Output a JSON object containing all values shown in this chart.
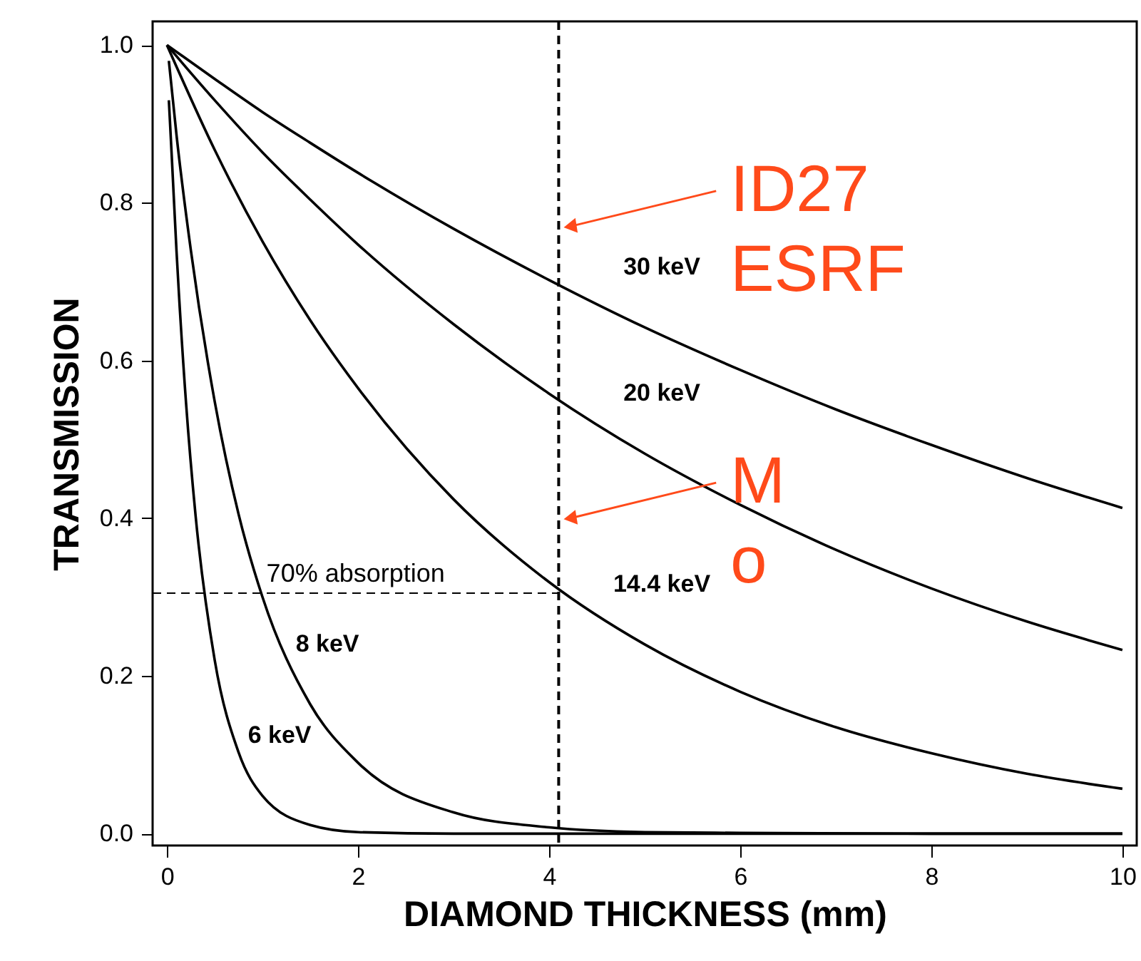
{
  "chart_data": {
    "type": "line",
    "xlabel": "DIAMOND THICKNESS (mm)",
    "ylabel": "TRANSMISSION",
    "xlim": [
      -0.15,
      10.15
    ],
    "ylim": [
      -0.015,
      1.03
    ],
    "xticks": [
      0,
      2,
      4,
      6,
      8,
      10
    ],
    "yticks": [
      {
        "value": 0,
        "label": "0.0"
      },
      0.2,
      0.4,
      0.6,
      0.8,
      {
        "value": 1,
        "label": "1.0"
      }
    ],
    "grid": false,
    "line_style": "solid",
    "marker": "none",
    "series": [
      {
        "color": "#000000",
        "x": [
          0,
          0.5,
          1,
          1.5,
          2,
          3,
          4,
          5,
          6,
          7,
          8,
          9,
          10
        ],
        "values": [
          1,
          0.957,
          0.915,
          0.876,
          0.838,
          0.767,
          0.702,
          0.642,
          0.588,
          0.538,
          0.493,
          0.451,
          0.413
        ]
      },
      {
        "color": "#000000",
        "x": [
          0,
          0.5,
          1,
          1.5,
          2,
          3,
          4,
          5,
          6,
          7,
          8,
          9,
          10
        ],
        "values": [
          1,
          0.93,
          0.864,
          0.804,
          0.747,
          0.646,
          0.558,
          0.482,
          0.417,
          0.36,
          0.311,
          0.269,
          0.233
        ]
      },
      {
        "color": "#000000",
        "x": [
          0,
          0.5,
          1,
          1.5,
          2,
          3,
          4,
          5,
          6,
          7,
          8,
          9,
          10
        ],
        "values": [
          1,
          0.867,
          0.751,
          0.651,
          0.565,
          0.424,
          0.319,
          0.24,
          0.18,
          0.135,
          0.102,
          0.076,
          0.057
        ]
      },
      {
        "color": "#000000",
        "x": [
          0.02,
          0.1,
          0.25,
          0.5,
          0.75,
          1,
          1.5,
          2,
          3,
          4,
          5,
          6,
          8,
          10
        ],
        "values": [
          0.98,
          0.886,
          0.74,
          0.548,
          0.405,
          0.3,
          0.164,
          0.09,
          0.027,
          0.008,
          0.002,
          0.001,
          0,
          0
        ]
      },
      {
        "color": "#000000",
        "x": [
          0.02,
          0.05,
          0.1,
          0.2,
          0.3,
          0.5,
          0.75,
          1,
          1.5,
          2,
          3,
          10
        ],
        "values": [
          0.93,
          0.86,
          0.739,
          0.546,
          0.403,
          0.22,
          0.103,
          0.048,
          0.011,
          0.002,
          0,
          0
        ]
      }
    ],
    "ref_lines": [
      {
        "axis": "x",
        "value": 4.1,
        "line_style": "dashed",
        "color": "#000000"
      },
      {
        "axis": "y",
        "value": 0.305,
        "label": "70% absorption",
        "line_style": "dashed",
        "color": "#000000"
      }
    ],
    "annotations": [
      {
        "text": "30 keV",
        "x": 5,
        "y": 0.642
      },
      {
        "text": "20 keV",
        "x": 5,
        "y": 0.482
      },
      {
        "text": "14.4 keV",
        "x": 5,
        "y": 0.24
      },
      {
        "text": "8 keV",
        "x": 1.5,
        "y": 0.164
      },
      {
        "text": "6 keV",
        "x": 1,
        "y": 0.048
      },
      {
        "text": "ID27\nESRF",
        "x": 4.1,
        "y": 0.77
      },
      {
        "text": "M\no",
        "x": 4.1,
        "y": 0.4
      }
    ]
  }
}
